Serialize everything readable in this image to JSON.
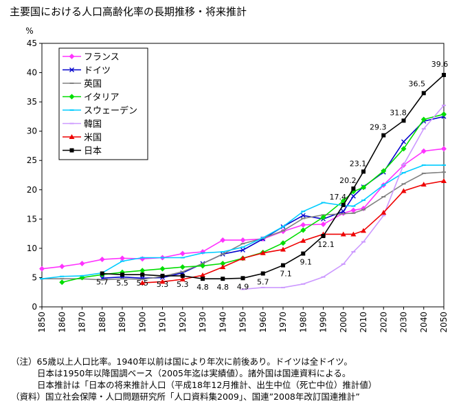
{
  "chart_data": {
    "type": "line",
    "title": "主要国における人口高齢化率の長期推移・将来推計",
    "ylabel": "%",
    "ylim": [
      0,
      45
    ],
    "yticks": [
      0,
      5,
      10,
      15,
      20,
      25,
      30,
      35,
      40,
      45
    ],
    "xlim": [
      1850,
      2050
    ],
    "xticks": [
      1850,
      1860,
      1870,
      1880,
      1890,
      1900,
      1910,
      1920,
      1930,
      1940,
      1950,
      1960,
      1970,
      1980,
      1990,
      2000,
      2010,
      2020,
      2030,
      2040,
      2050
    ],
    "grid": false,
    "legend": "top-left",
    "series": [
      {
        "name": "フランス",
        "color": "#ff33ff",
        "marker": "diamond",
        "x": [
          1850,
          1860,
          1870,
          1880,
          1890,
          1900,
          1910,
          1920,
          1930,
          1940,
          1950,
          1960,
          1970,
          1980,
          1990,
          2000,
          2005,
          2010,
          2020,
          2030,
          2040,
          2050
        ],
        "y": [
          6.5,
          6.9,
          7.4,
          8.1,
          8.3,
          8.2,
          8.4,
          9.1,
          9.4,
          11.4,
          11.4,
          11.6,
          12.9,
          14.0,
          14.1,
          16.0,
          16.5,
          16.8,
          20.8,
          24.2,
          26.6,
          27.0
        ]
      },
      {
        "name": "ドイツ",
        "color": "#0000cc",
        "marker": "x",
        "x": [
          1880,
          1890,
          1900,
          1910,
          1920,
          1930,
          1940,
          1950,
          1960,
          1970,
          1980,
          1990,
          2000,
          2005,
          2010,
          2020,
          2030,
          2040,
          2050
        ],
        "y": [
          4.9,
          5.1,
          4.9,
          5.0,
          5.8,
          7.4,
          9.0,
          9.7,
          11.6,
          13.7,
          15.6,
          15.0,
          16.3,
          18.9,
          20.5,
          23.0,
          28.2,
          31.7,
          32.5
        ]
      },
      {
        "name": "英国",
        "color": "#808080",
        "marker": "dash",
        "x": [
          1850,
          1860,
          1870,
          1880,
          1890,
          1900,
          1910,
          1920,
          1930,
          1940,
          1950,
          1960,
          1970,
          1980,
          1990,
          2000,
          2005,
          2010,
          2020,
          2030,
          2040,
          2050
        ],
        "y": [
          4.8,
          4.8,
          4.8,
          4.6,
          4.8,
          4.7,
          5.2,
          6.0,
          7.4,
          9.0,
          10.8,
          11.7,
          13.0,
          15.1,
          15.7,
          15.9,
          16.0,
          16.6,
          18.8,
          21.0,
          22.8,
          23.0
        ]
      },
      {
        "name": "イタリア",
        "color": "#00dd00",
        "marker": "diamond",
        "x": [
          1860,
          1870,
          1880,
          1890,
          1900,
          1910,
          1920,
          1930,
          1940,
          1950,
          1960,
          1970,
          1980,
          1990,
          2000,
          2005,
          2010,
          2020,
          2030,
          2040,
          2050
        ],
        "y": [
          4.2,
          5.0,
          5.5,
          5.9,
          6.2,
          6.5,
          6.8,
          7.0,
          7.4,
          8.3,
          9.3,
          10.9,
          13.1,
          15.3,
          18.1,
          19.7,
          20.4,
          23.2,
          27.0,
          32.0,
          32.9
        ]
      },
      {
        "name": "スウェーデン",
        "color": "#00ccff",
        "marker": "dash",
        "x": [
          1850,
          1860,
          1870,
          1880,
          1890,
          1900,
          1910,
          1920,
          1930,
          1940,
          1950,
          1960,
          1970,
          1980,
          1990,
          2000,
          2005,
          2010,
          2020,
          2030,
          2040,
          2050
        ],
        "y": [
          4.8,
          5.2,
          5.3,
          5.8,
          7.8,
          8.4,
          8.4,
          8.4,
          9.2,
          9.4,
          10.2,
          11.8,
          13.7,
          16.3,
          17.8,
          17.3,
          17.2,
          18.2,
          20.8,
          22.9,
          24.2,
          24.2
        ]
      },
      {
        "name": "韓国",
        "color": "#cc99ff",
        "marker": "dash",
        "x": [
          1950,
          1960,
          1970,
          1980,
          1990,
          2000,
          2005,
          2010,
          2020,
          2030,
          2040,
          2050
        ],
        "y": [
          3.0,
          3.3,
          3.3,
          3.9,
          5.1,
          7.3,
          9.4,
          11.1,
          15.6,
          24.3,
          30.4,
          34.4
        ]
      },
      {
        "name": "米国",
        "color": "#ee0000",
        "marker": "triangle",
        "x": [
          1900,
          1910,
          1920,
          1930,
          1940,
          1950,
          1960,
          1970,
          1980,
          1990,
          2000,
          2005,
          2010,
          2020,
          2030,
          2040,
          2050
        ],
        "y": [
          4.1,
          4.3,
          4.7,
          5.4,
          6.8,
          8.3,
          9.2,
          9.8,
          11.3,
          12.4,
          12.4,
          12.4,
          13.0,
          16.1,
          19.8,
          20.9,
          21.5
        ]
      },
      {
        "name": "日本",
        "color": "#000000",
        "marker": "square",
        "x": [
          1880,
          1890,
          1900,
          1910,
          1920,
          1930,
          1940,
          1950,
          1960,
          1970,
          1980,
          1990,
          2000,
          2005,
          2010,
          2020,
          2030,
          2040,
          2050
        ],
        "y": [
          5.7,
          5.5,
          5.5,
          5.3,
          5.3,
          4.8,
          4.8,
          4.9,
          5.7,
          7.1,
          9.1,
          12.1,
          17.4,
          20.2,
          23.1,
          29.3,
          31.8,
          36.5,
          39.6
        ]
      }
    ],
    "annotations": [
      {
        "label": "5.7",
        "x": 1880,
        "y": 5.7
      },
      {
        "label": "5.5",
        "x": 1890,
        "y": 5.5
      },
      {
        "label": "5.5",
        "x": 1900,
        "y": 5.5
      },
      {
        "label": "5.3",
        "x": 1910,
        "y": 5.3
      },
      {
        "label": "5.3",
        "x": 1920,
        "y": 5.3
      },
      {
        "label": "4.8",
        "x": 1930,
        "y": 4.8
      },
      {
        "label": "4.8",
        "x": 1940,
        "y": 4.8
      },
      {
        "label": "4.9",
        "x": 1950,
        "y": 4.9
      },
      {
        "label": "5.7",
        "x": 1960,
        "y": 5.7
      },
      {
        "label": "7.1",
        "x": 1970,
        "y": 7.1
      },
      {
        "label": "9.1",
        "x": 1980,
        "y": 9.1
      },
      {
        "label": "12.1",
        "x": 1990,
        "y": 12.1
      },
      {
        "label": "17.4",
        "x": 2000,
        "y": 17.4
      },
      {
        "label": "20.2",
        "x": 2005,
        "y": 20.2
      },
      {
        "label": "23.1",
        "x": 2010,
        "y": 23.1
      },
      {
        "label": "29.3",
        "x": 2020,
        "y": 29.3
      },
      {
        "label": "31.8",
        "x": 2030,
        "y": 31.8
      },
      {
        "label": "36.5",
        "x": 2040,
        "y": 36.5
      },
      {
        "label": "39.6",
        "x": 2050,
        "y": 39.6
      }
    ]
  },
  "notes": {
    "line1": "（注）65歳以上人口比率。1940年以前は国により年次に前後あり。ドイツは全ドイツ。",
    "line2": "日本は1950年以降国調ベース（2005年迄は実績値）。諸外国は国連資料による。",
    "line3": "日本推計は「日本の将来推計人口（平成18年12月推計、出生中位（死亡中位）推計値）",
    "line4": "（資料）国立社会保障・人口問題研究所「人口資料集2009」、国連”2008年改訂国連推計”"
  }
}
